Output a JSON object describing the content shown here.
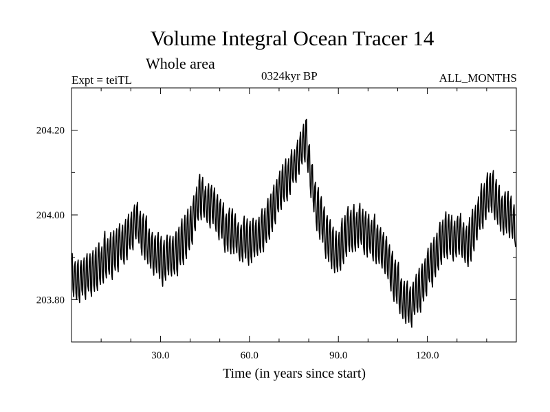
{
  "chart_data": {
    "type": "line",
    "title": "Volume Integral Ocean Tracer 14",
    "subtitle": "Whole area",
    "left_label": "Expt = teiTL",
    "center_label": "0324kyr BP",
    "right_label": "ALL_MONTHS",
    "xlabel": "Time (in years since start)",
    "ylabel": "",
    "xlim": [
      0,
      150
    ],
    "ylim": [
      203.7,
      204.3
    ],
    "x_ticks": [
      30,
      60,
      90,
      120
    ],
    "x_tick_labels": [
      "30.0",
      "60.0",
      "90.0",
      "120.0"
    ],
    "x_minor_step": 10,
    "y_ticks": [
      203.8,
      204.0,
      204.2
    ],
    "y_tick_labels": [
      "203.80",
      "204.00",
      "204.20"
    ],
    "y_minor_step": 0.1,
    "grid": false,
    "line_color": "#000000",
    "trend": {
      "x": [
        0,
        3,
        7,
        12,
        17,
        22,
        27,
        31,
        38,
        43,
        47,
        53,
        58,
        63,
        68,
        74,
        79,
        82,
        87,
        89,
        93,
        98,
        103,
        108,
        112,
        115,
        120,
        125,
        130,
        134,
        138,
        141,
        146,
        150
      ],
      "y": [
        203.86,
        203.84,
        203.87,
        203.9,
        203.93,
        203.98,
        203.92,
        203.89,
        203.93,
        204.04,
        204.02,
        203.96,
        203.94,
        203.95,
        204.02,
        204.1,
        204.18,
        204.03,
        203.93,
        203.9,
        203.96,
        203.97,
        203.94,
        203.87,
        203.8,
        203.79,
        203.87,
        203.94,
        203.95,
        203.93,
        204.01,
        204.06,
        204.0,
        203.98
      ]
    },
    "oscillation": {
      "period_years": 1,
      "amplitude_range": [
        0.05,
        0.07
      ]
    }
  }
}
